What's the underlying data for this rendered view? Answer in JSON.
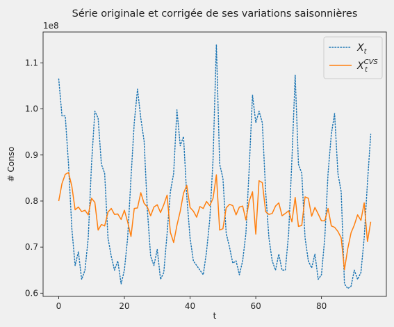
{
  "chart_data": {
    "type": "line",
    "title": "Série originale et corrigée de ses variations saisonnières",
    "xlabel": "t",
    "ylabel": "# Conso",
    "offset_text": "1e8",
    "xlim": [
      -4.75,
      99.75
    ],
    "ylim": [
      0.593,
      1.167
    ],
    "x_ticks": [
      0,
      20,
      40,
      60,
      80
    ],
    "x_tick_labels": [
      "0",
      "20",
      "40",
      "60",
      "80"
    ],
    "y_ticks": [
      0.6,
      0.7,
      0.8,
      0.9,
      1.0,
      1.1
    ],
    "y_tick_labels": [
      "0.6",
      "0.7",
      "0.8",
      "0.9",
      "1.0",
      "1.1"
    ],
    "grid": false,
    "legend_position": "top-right",
    "x": [
      0,
      1,
      2,
      3,
      4,
      5,
      6,
      7,
      8,
      9,
      10,
      11,
      12,
      13,
      14,
      15,
      16,
      17,
      18,
      19,
      20,
      21,
      22,
      23,
      24,
      25,
      26,
      27,
      28,
      29,
      30,
      31,
      32,
      33,
      34,
      35,
      36,
      37,
      38,
      39,
      40,
      41,
      42,
      43,
      44,
      45,
      46,
      47,
      48,
      49,
      50,
      51,
      52,
      53,
      54,
      55,
      56,
      57,
      58,
      59,
      60,
      61,
      62,
      63,
      64,
      65,
      66,
      67,
      68,
      69,
      70,
      71,
      72,
      73,
      74,
      75,
      76,
      77,
      78,
      79,
      80,
      81,
      82,
      83,
      84,
      85,
      86,
      87,
      88,
      89,
      90,
      91,
      92,
      93,
      94,
      95
    ],
    "series": [
      {
        "name": "X_t",
        "legend_main": "X",
        "legend_sub": "t",
        "legend_sup": "",
        "color": "#1f77b4",
        "style": "dotted",
        "values": [
          1.065,
          0.985,
          0.985,
          0.88,
          0.74,
          0.66,
          0.69,
          0.63,
          0.65,
          0.72,
          0.88,
          0.995,
          0.98,
          0.88,
          0.86,
          0.72,
          0.68,
          0.65,
          0.67,
          0.62,
          0.65,
          0.72,
          0.85,
          0.97,
          1.043,
          0.98,
          0.93,
          0.78,
          0.68,
          0.66,
          0.695,
          0.63,
          0.645,
          0.73,
          0.82,
          0.86,
          0.998,
          0.92,
          0.94,
          0.81,
          0.72,
          0.67,
          0.66,
          0.65,
          0.64,
          0.69,
          0.76,
          0.89,
          1.14,
          0.88,
          0.85,
          0.73,
          0.7,
          0.665,
          0.67,
          0.64,
          0.67,
          0.73,
          0.87,
          1.03,
          0.97,
          0.995,
          0.97,
          0.82,
          0.72,
          0.67,
          0.65,
          0.685,
          0.65,
          0.65,
          0.73,
          0.89,
          1.073,
          0.88,
          0.86,
          0.72,
          0.67,
          0.655,
          0.685,
          0.63,
          0.64,
          0.72,
          0.86,
          0.945,
          0.99,
          0.86,
          0.82,
          0.62,
          0.61,
          0.615,
          0.65,
          0.63,
          0.645,
          0.72,
          0.84,
          0.945
        ]
      },
      {
        "name": "X_t^CVS",
        "legend_main": "X",
        "legend_sub": "t",
        "legend_sup": "CVS",
        "color": "#ff7f0e",
        "style": "solid",
        "values": [
          0.8,
          0.838,
          0.858,
          0.862,
          0.832,
          0.781,
          0.787,
          0.777,
          0.78,
          0.77,
          0.806,
          0.797,
          0.737,
          0.749,
          0.746,
          0.776,
          0.784,
          0.771,
          0.772,
          0.76,
          0.78,
          0.755,
          0.723,
          0.784,
          0.785,
          0.818,
          0.795,
          0.787,
          0.768,
          0.787,
          0.792,
          0.775,
          0.792,
          0.813,
          0.732,
          0.71,
          0.747,
          0.778,
          0.817,
          0.834,
          0.786,
          0.778,
          0.765,
          0.788,
          0.784,
          0.799,
          0.79,
          0.806,
          0.857,
          0.737,
          0.74,
          0.785,
          0.793,
          0.79,
          0.77,
          0.787,
          0.789,
          0.759,
          0.8,
          0.82,
          0.728,
          0.844,
          0.84,
          0.777,
          0.771,
          0.773,
          0.789,
          0.796,
          0.768,
          0.773,
          0.779,
          0.755,
          0.808,
          0.745,
          0.747,
          0.809,
          0.806,
          0.767,
          0.786,
          0.772,
          0.757,
          0.757,
          0.784,
          0.746,
          0.743,
          0.734,
          0.72,
          0.651,
          0.697,
          0.731,
          0.748,
          0.77,
          0.758,
          0.796,
          0.712,
          0.755
        ]
      }
    ]
  }
}
